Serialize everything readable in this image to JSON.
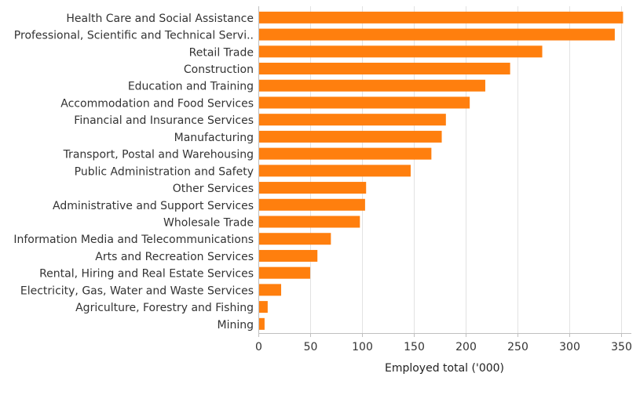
{
  "chart_data": {
    "type": "bar",
    "orientation": "horizontal",
    "title": "",
    "xlabel": "Employed total ('000)",
    "ylabel": "",
    "xlim": [
      0,
      360
    ],
    "xticks": [
      0,
      50,
      100,
      150,
      200,
      250,
      300,
      350
    ],
    "grid": true,
    "bar_color": "#ff7f0e",
    "categories": [
      "Health Care and Social Assistance",
      "Professional, Scientific and Technical Servi..",
      "Retail Trade",
      "Construction",
      "Education and Training",
      "Accommodation and Food Services",
      "Financial and Insurance Services",
      "Manufacturing",
      "Transport, Postal and Warehousing",
      "Public Administration and Safety",
      "Other Services",
      "Administrative and Support Services",
      "Wholesale Trade",
      "Information Media and Telecommunications",
      "Arts and Recreation Services",
      "Rental, Hiring and Real Estate Services",
      "Electricity, Gas, Water and Waste Services",
      "Agriculture, Forestry and Fishing",
      "Mining"
    ],
    "values": [
      352,
      344,
      274,
      243,
      219,
      204,
      181,
      177,
      167,
      147,
      104,
      103,
      98,
      70,
      57,
      50,
      22,
      9,
      6
    ]
  }
}
